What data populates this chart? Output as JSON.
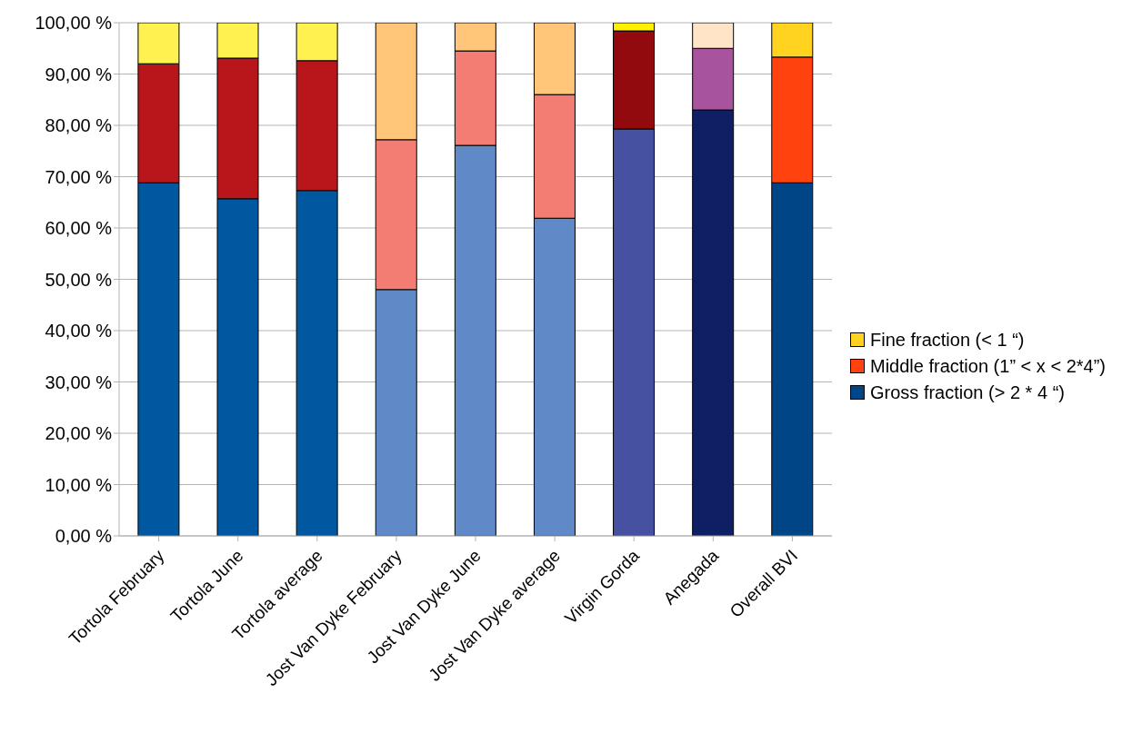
{
  "chart_data": {
    "type": "bar",
    "stacked": true,
    "legend": "right",
    "grid": "y",
    "categories": [
      "Tortola February",
      "Tortola June",
      "Tortola average",
      "Jost Van Dyke February",
      "Jost Van Dyke June",
      "Jost Van Dyke average",
      "Virgin Gorda",
      "Anegada",
      "Overall BVI"
    ],
    "ylim": [
      0,
      100
    ],
    "yticks": [
      {
        "value": 0,
        "label": "0,00 %"
      },
      {
        "value": 10,
        "label": "10,00 %"
      },
      {
        "value": 20,
        "label": "20,00 %"
      },
      {
        "value": 30,
        "label": "30,00 %"
      },
      {
        "value": 40,
        "label": "40,00 %"
      },
      {
        "value": 50,
        "label": "50,00 %"
      },
      {
        "value": 60,
        "label": "60,00 %"
      },
      {
        "value": 70,
        "label": "70,00 %"
      },
      {
        "value": 80,
        "label": "80,00 %"
      },
      {
        "value": 90,
        "label": "90,00 %"
      },
      {
        "value": 100,
        "label": "100,00 %"
      }
    ],
    "series": [
      {
        "name": "Gross fraction (> 2 * 4 “)",
        "color": "#004586",
        "values": [
          68.8,
          65.7,
          67.3,
          48.0,
          76.1,
          61.9,
          79.3,
          83.0,
          68.8
        ],
        "colors": [
          "#0059a0",
          "#0059a0",
          "#0059a0",
          "#5f8ac7",
          "#5f8ac7",
          "#5f8ac7",
          "#4651a2",
          "#0e2063",
          "#004586"
        ]
      },
      {
        "name": "Middle fraction (1” < x < 2*4”)",
        "color": "#ff420e",
        "values": [
          23.2,
          27.4,
          25.3,
          29.2,
          18.4,
          24.1,
          19.1,
          12.0,
          24.5
        ],
        "colors": [
          "#b9161c",
          "#b9161c",
          "#b9161c",
          "#f47d73",
          "#f47d73",
          "#f47d73",
          "#930a0e",
          "#a8539e",
          "#ff420e"
        ]
      },
      {
        "name": "Fine fraction (< 1 “)",
        "color": "#ffd320",
        "values": [
          8.0,
          6.9,
          7.4,
          22.8,
          5.5,
          14.0,
          1.6,
          5.0,
          6.7
        ],
        "colors": [
          "#fff150",
          "#fff150",
          "#fff150",
          "#ffc578",
          "#ffc578",
          "#ffc578",
          "#fff200",
          "#ffe4c8",
          "#ffd320"
        ]
      }
    ]
  }
}
